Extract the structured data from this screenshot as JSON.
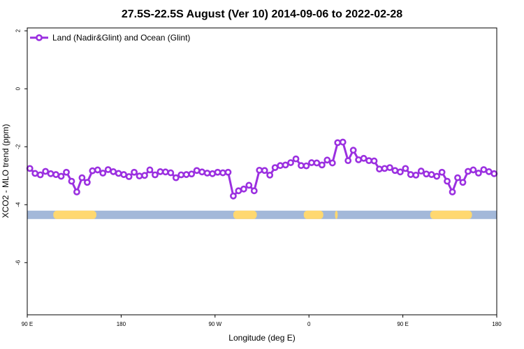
{
  "chart_data": {
    "type": "line",
    "title": "27.5S-22.5S August (Ver 10)   2014-09-06 to 2022-02-28",
    "xlabel": "Longitude (deg E)",
    "ylabel": "XCO2 - MLO trend (ppm)",
    "xlim": [
      90,
      450
    ],
    "ylim": [
      -7.8,
      2.1
    ],
    "x_ticks": [
      {
        "value": 90,
        "label": "90 E"
      },
      {
        "value": 162,
        "label": "180"
      },
      {
        "value": 234,
        "label": "90 W"
      },
      {
        "value": 306,
        "label": "0"
      },
      {
        "value": 378,
        "label": "90 E"
      },
      {
        "value": 450,
        "label": "180"
      }
    ],
    "y_ticks": [
      {
        "value": 2,
        "label": "2"
      },
      {
        "value": 0,
        "label": "0"
      },
      {
        "value": -2,
        "label": "-2"
      },
      {
        "value": -4,
        "label": "-4"
      },
      {
        "value": -6,
        "label": "-6"
      }
    ],
    "legend": {
      "position": "top-left"
    },
    "series": [
      {
        "name": "Land (Nadir&Glint) and Ocean (Glint)",
        "color": "#9b30e0",
        "x": [
          92,
          96,
          100,
          104,
          108,
          112,
          116,
          120,
          124,
          128,
          132,
          136,
          140,
          144,
          148,
          152,
          156,
          160,
          164,
          168,
          172,
          176,
          180,
          184,
          188,
          192,
          196,
          200,
          204,
          208,
          212,
          216,
          220,
          224,
          228,
          232,
          236,
          240,
          244,
          248,
          252,
          256,
          260,
          264,
          268,
          272,
          276,
          280,
          284,
          288,
          292,
          296,
          300,
          304,
          308,
          312,
          316,
          320,
          324,
          328,
          332,
          336,
          340,
          344,
          348,
          352,
          356,
          360,
          364,
          368,
          372,
          376,
          380,
          384,
          388,
          392,
          396,
          400,
          404,
          408,
          412,
          416,
          420,
          424,
          428,
          432,
          436,
          440,
          444,
          448
        ],
        "y": [
          -2.75,
          -2.92,
          -2.97,
          -2.85,
          -2.93,
          -2.96,
          -3.02,
          -2.88,
          -3.19,
          -3.56,
          -3.07,
          -3.23,
          -2.83,
          -2.8,
          -2.91,
          -2.79,
          -2.86,
          -2.92,
          -2.96,
          -3.03,
          -2.88,
          -3.01,
          -2.99,
          -2.8,
          -2.97,
          -2.86,
          -2.87,
          -2.9,
          -3.07,
          -2.97,
          -2.96,
          -2.94,
          -2.82,
          -2.87,
          -2.91,
          -2.93,
          -2.88,
          -2.9,
          -2.88,
          -3.7,
          -3.52,
          -3.46,
          -3.33,
          -3.52,
          -2.81,
          -2.82,
          -2.98,
          -2.72,
          -2.65,
          -2.63,
          -2.55,
          -2.42,
          -2.65,
          -2.66,
          -2.55,
          -2.56,
          -2.63,
          -2.46,
          -2.56,
          -1.86,
          -1.84,
          -2.48,
          -2.12,
          -2.45,
          -2.4,
          -2.48,
          -2.49,
          -2.77,
          -2.75,
          -2.72,
          -2.82,
          -2.87,
          -2.75,
          -2.96,
          -2.98,
          -2.84,
          -2.94,
          -2.96,
          -3.02,
          -2.88,
          -3.19,
          -3.56,
          -3.07,
          -3.23,
          -2.85,
          -2.8,
          -2.91,
          -2.79,
          -2.86,
          -2.93
        ]
      }
    ],
    "surface_strip": {
      "y_value": -4.23,
      "ocean_color": "#a3b8d9",
      "land_color": "#ffd870",
      "land_ranges": [
        [
          110,
          143
        ],
        [
          248,
          266
        ],
        [
          302,
          317
        ],
        [
          326,
          328
        ],
        [
          399,
          431
        ]
      ]
    }
  }
}
